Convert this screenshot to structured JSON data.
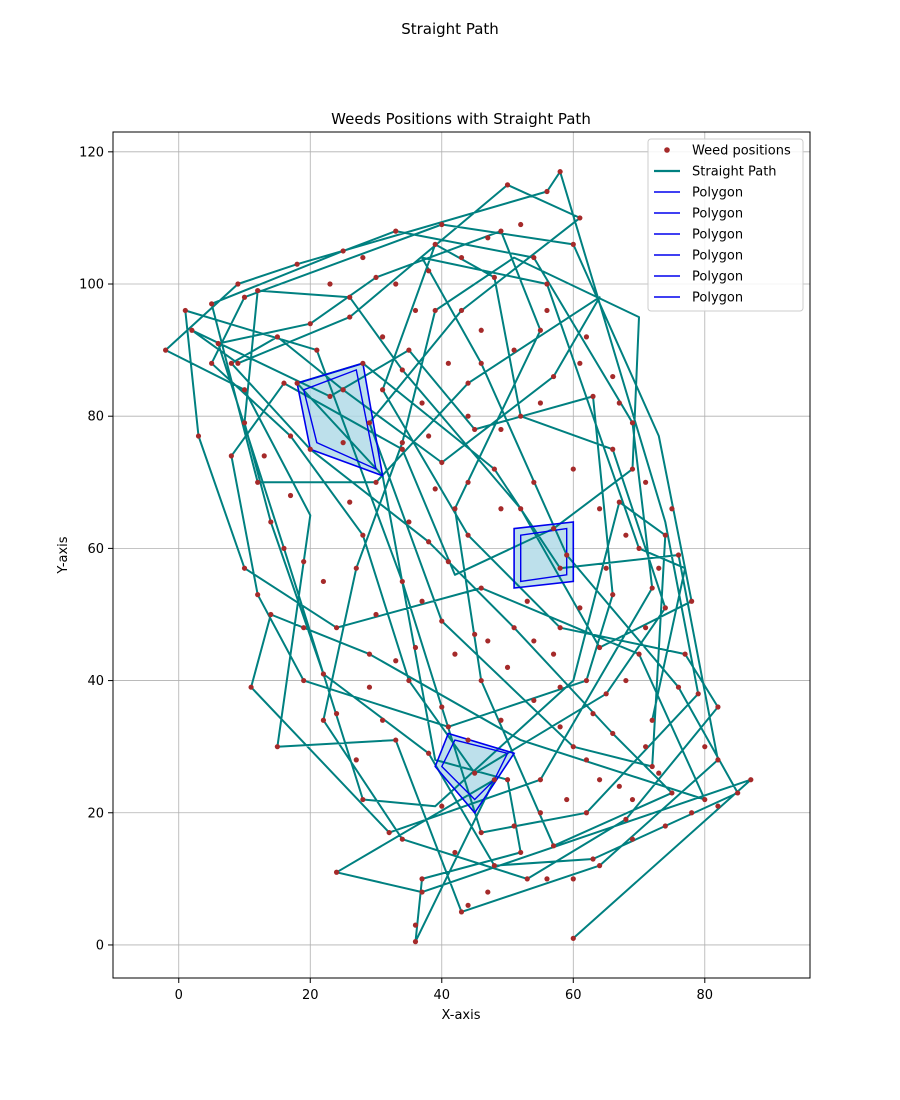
{
  "chart_data": {
    "type": "scatter",
    "suptitle": "Straight Path",
    "title": "Weeds Positions with Straight Path",
    "xlabel": "X-axis",
    "ylabel": "Y-axis",
    "xlim": [
      -10,
      96
    ],
    "ylim": [
      -5,
      123
    ],
    "xticks": [
      0,
      20,
      40,
      60,
      80
    ],
    "yticks": [
      0,
      20,
      40,
      60,
      80,
      100,
      120
    ],
    "grid": true,
    "legend_position": "top-right",
    "legend": [
      {
        "label": "Weed positions",
        "kind": "marker",
        "color": "#a52a2a"
      },
      {
        "label": "Straight Path",
        "kind": "line",
        "color": "#008080"
      },
      {
        "label": "Polygon",
        "kind": "line",
        "color": "#0000ee"
      },
      {
        "label": "Polygon",
        "kind": "line",
        "color": "#0000ee"
      },
      {
        "label": "Polygon",
        "kind": "line",
        "color": "#0000ee"
      },
      {
        "label": "Polygon",
        "kind": "line",
        "color": "#0000ee"
      },
      {
        "label": "Polygon",
        "kind": "line",
        "color": "#0000ee"
      },
      {
        "label": "Polygon",
        "kind": "line",
        "color": "#0000ee"
      }
    ],
    "colors": {
      "weed": "#a52a2a",
      "path": "#008080",
      "polygon": "#0000ee",
      "polygon_fill": "#add8e6",
      "grid": "#b0b0b0"
    },
    "path": [
      [
        60,
        1
      ],
      [
        87,
        25
      ],
      [
        37,
        8
      ],
      [
        24,
        11
      ],
      [
        48,
        25
      ],
      [
        36,
        0.5
      ],
      [
        37,
        10
      ],
      [
        52,
        14
      ],
      [
        50,
        25
      ],
      [
        39,
        28
      ],
      [
        31,
        71
      ],
      [
        18,
        85
      ],
      [
        28,
        88
      ],
      [
        48,
        72
      ],
      [
        58,
        57
      ],
      [
        76,
        59
      ],
      [
        82,
        28
      ],
      [
        64,
        12
      ],
      [
        43,
        5
      ],
      [
        33,
        31
      ],
      [
        15,
        30
      ],
      [
        20,
        65
      ],
      [
        10,
        84
      ],
      [
        -2,
        90
      ],
      [
        9,
        100
      ],
      [
        18,
        103
      ],
      [
        56,
        114
      ],
      [
        58,
        117
      ],
      [
        74,
        64
      ],
      [
        79,
        38
      ],
      [
        62,
        20
      ],
      [
        46,
        17
      ],
      [
        34,
        55
      ],
      [
        21,
        90
      ],
      [
        1,
        96
      ],
      [
        3,
        77
      ],
      [
        10,
        57
      ],
      [
        24,
        48
      ],
      [
        46,
        54
      ],
      [
        70,
        44
      ],
      [
        80,
        22
      ],
      [
        52,
        31
      ],
      [
        29,
        44
      ],
      [
        14,
        50
      ],
      [
        11,
        39
      ],
      [
        32,
        17
      ],
      [
        55,
        25
      ],
      [
        72,
        54
      ],
      [
        69,
        79
      ],
      [
        54,
        104
      ],
      [
        33,
        108
      ],
      [
        25,
        105
      ],
      [
        5,
        97
      ],
      [
        12,
        70
      ],
      [
        30,
        70
      ],
      [
        44,
        85
      ],
      [
        64,
        98
      ],
      [
        57,
        86
      ],
      [
        40,
        73
      ],
      [
        25,
        84
      ],
      [
        15,
        92
      ],
      [
        8,
        88
      ],
      [
        20,
        75
      ],
      [
        38,
        61
      ],
      [
        51,
        48
      ],
      [
        66,
        32
      ],
      [
        75,
        23
      ],
      [
        57,
        15
      ],
      [
        46,
        40
      ],
      [
        42,
        66
      ],
      [
        55,
        93
      ],
      [
        49,
        108
      ],
      [
        30,
        101
      ],
      [
        20,
        94
      ],
      [
        6,
        91
      ],
      [
        16,
        60
      ],
      [
        28,
        22
      ],
      [
        39,
        21
      ],
      [
        60,
        40
      ],
      [
        67,
        67
      ],
      [
        74,
        62
      ],
      [
        72,
        27
      ],
      [
        60,
        30
      ],
      [
        40,
        49
      ],
      [
        29,
        79
      ],
      [
        43,
        96
      ],
      [
        61,
        110
      ],
      [
        50,
        115
      ],
      [
        26,
        95
      ],
      [
        9,
        88
      ],
      [
        2,
        93
      ],
      [
        23,
        83
      ],
      [
        35,
        90
      ],
      [
        45,
        78
      ],
      [
        63,
        83
      ],
      [
        66,
        53
      ],
      [
        62,
        40
      ],
      [
        41,
        33
      ],
      [
        19,
        40
      ],
      [
        12,
        53
      ],
      [
        8,
        74
      ],
      [
        16,
        85
      ],
      [
        34,
        75
      ],
      [
        42,
        56
      ],
      [
        57,
        63
      ],
      [
        69,
        72
      ],
      [
        70,
        95
      ],
      [
        51,
        104
      ],
      [
        39,
        96
      ],
      [
        34,
        76
      ],
      [
        27,
        57
      ],
      [
        22,
        34
      ],
      [
        34,
        16
      ],
      [
        53,
        10
      ],
      [
        68,
        19
      ],
      [
        82,
        36
      ],
      [
        77,
        44
      ],
      [
        58,
        48
      ],
      [
        44,
        62
      ],
      [
        31,
        84
      ],
      [
        39,
        106
      ],
      [
        48,
        101
      ],
      [
        52,
        80
      ],
      [
        66,
        75
      ],
      [
        74,
        51
      ],
      [
        65,
        38
      ],
      [
        45,
        26
      ],
      [
        35,
        40
      ],
      [
        28,
        62
      ],
      [
        17,
        77
      ],
      [
        5,
        88
      ],
      [
        10,
        98
      ],
      [
        40,
        109
      ],
      [
        60,
        106
      ],
      [
        73,
        77
      ],
      [
        78,
        52
      ],
      [
        64,
        45
      ],
      [
        52,
        66
      ],
      [
        34,
        87
      ],
      [
        26,
        98
      ],
      [
        12,
        99
      ],
      [
        10,
        79
      ],
      [
        14,
        64
      ],
      [
        22,
        41
      ],
      [
        38,
        29
      ],
      [
        48,
        12
      ],
      [
        63,
        13
      ],
      [
        85,
        23
      ],
      [
        76,
        39
      ],
      [
        59,
        59
      ],
      [
        46,
        88
      ],
      [
        37,
        104
      ],
      [
        56,
        100
      ],
      [
        70,
        60
      ],
      [
        77,
        57
      ],
      [
        72,
        34
      ]
    ],
    "weeds": [
      [
        60,
        1
      ],
      [
        87,
        25
      ],
      [
        85,
        23
      ],
      [
        82,
        21
      ],
      [
        80,
        22
      ],
      [
        78,
        20
      ],
      [
        74,
        18
      ],
      [
        69,
        16
      ],
      [
        64,
        12
      ],
      [
        60,
        10
      ],
      [
        56,
        10
      ],
      [
        53,
        10
      ],
      [
        48,
        12
      ],
      [
        44,
        6
      ],
      [
        43,
        5
      ],
      [
        37,
        8
      ],
      [
        36,
        0.5
      ],
      [
        36,
        3
      ],
      [
        37,
        10
      ],
      [
        24,
        11
      ],
      [
        34,
        16
      ],
      [
        32,
        17
      ],
      [
        28,
        22
      ],
      [
        40,
        21
      ],
      [
        46,
        17
      ],
      [
        48,
        25
      ],
      [
        50,
        25
      ],
      [
        52,
        14
      ],
      [
        55,
        25
      ],
      [
        57,
        15
      ],
      [
        62,
        20
      ],
      [
        63,
        13
      ],
      [
        66,
        32
      ],
      [
        68,
        19
      ],
      [
        72,
        27
      ],
      [
        72,
        34
      ],
      [
        75,
        23
      ],
      [
        76,
        39
      ],
      [
        77,
        44
      ],
      [
        79,
        38
      ],
      [
        82,
        28
      ],
      [
        82,
        36
      ],
      [
        80,
        30
      ],
      [
        78,
        52
      ],
      [
        76,
        59
      ],
      [
        74,
        62
      ],
      [
        74,
        51
      ],
      [
        72,
        54
      ],
      [
        70,
        60
      ],
      [
        70,
        44
      ],
      [
        69,
        72
      ],
      [
        69,
        79
      ],
      [
        67,
        67
      ],
      [
        66,
        75
      ],
      [
        66,
        53
      ],
      [
        65,
        38
      ],
      [
        64,
        45
      ],
      [
        63,
        83
      ],
      [
        62,
        40
      ],
      [
        61,
        110
      ],
      [
        60,
        106
      ],
      [
        60,
        30
      ],
      [
        59,
        59
      ],
      [
        58,
        117
      ],
      [
        58,
        57
      ],
      [
        58,
        48
      ],
      [
        57,
        86
      ],
      [
        57,
        63
      ],
      [
        56,
        114
      ],
      [
        56,
        100
      ],
      [
        55,
        93
      ],
      [
        54,
        104
      ],
      [
        52,
        80
      ],
      [
        52,
        66
      ],
      [
        51,
        48
      ],
      [
        50,
        115
      ],
      [
        49,
        108
      ],
      [
        48,
        101
      ],
      [
        48,
        72
      ],
      [
        46,
        88
      ],
      [
        46,
        54
      ],
      [
        46,
        40
      ],
      [
        45,
        78
      ],
      [
        45,
        26
      ],
      [
        44,
        85
      ],
      [
        44,
        62
      ],
      [
        43,
        96
      ],
      [
        42,
        66
      ],
      [
        41,
        33
      ],
      [
        40,
        109
      ],
      [
        40,
        73
      ],
      [
        40,
        49
      ],
      [
        39,
        106
      ],
      [
        39,
        96
      ],
      [
        38,
        61
      ],
      [
        38,
        29
      ],
      [
        35,
        90
      ],
      [
        35,
        40
      ],
      [
        34,
        87
      ],
      [
        34,
        76
      ],
      [
        34,
        75
      ],
      [
        34,
        55
      ],
      [
        33,
        108
      ],
      [
        33,
        31
      ],
      [
        31,
        84
      ],
      [
        30,
        101
      ],
      [
        30,
        70
      ],
      [
        29,
        79
      ],
      [
        29,
        44
      ],
      [
        28,
        88
      ],
      [
        28,
        62
      ],
      [
        27,
        57
      ],
      [
        26,
        98
      ],
      [
        26,
        95
      ],
      [
        25,
        105
      ],
      [
        25,
        84
      ],
      [
        24,
        48
      ],
      [
        23,
        83
      ],
      [
        22,
        41
      ],
      [
        22,
        34
      ],
      [
        21,
        90
      ],
      [
        20,
        94
      ],
      [
        20,
        75
      ],
      [
        19,
        40
      ],
      [
        18,
        103
      ],
      [
        18,
        85
      ],
      [
        17,
        77
      ],
      [
        16,
        85
      ],
      [
        16,
        60
      ],
      [
        15,
        92
      ],
      [
        15,
        30
      ],
      [
        14,
        64
      ],
      [
        14,
        50
      ],
      [
        12,
        99
      ],
      [
        12,
        70
      ],
      [
        12,
        53
      ],
      [
        11,
        39
      ],
      [
        10,
        98
      ],
      [
        10,
        84
      ],
      [
        10,
        79
      ],
      [
        10,
        57
      ],
      [
        9,
        100
      ],
      [
        9,
        88
      ],
      [
        8,
        88
      ],
      [
        8,
        74
      ],
      [
        6,
        91
      ],
      [
        5,
        97
      ],
      [
        5,
        88
      ],
      [
        3,
        77
      ],
      [
        2,
        93
      ],
      [
        1,
        96
      ],
      [
        -2,
        90
      ],
      [
        30,
        50
      ],
      [
        36,
        45
      ],
      [
        42,
        44
      ],
      [
        47,
        46
      ],
      [
        53,
        52
      ],
      [
        57,
        44
      ],
      [
        61,
        51
      ],
      [
        65,
        57
      ],
      [
        26,
        67
      ],
      [
        22,
        55
      ],
      [
        19,
        48
      ],
      [
        24,
        35
      ],
      [
        27,
        28
      ],
      [
        31,
        34
      ],
      [
        40,
        36
      ],
      [
        44,
        31
      ],
      [
        49,
        34
      ],
      [
        54,
        37
      ],
      [
        58,
        33
      ],
      [
        62,
        28
      ],
      [
        67,
        24
      ],
      [
        71,
        30
      ],
      [
        35,
        64
      ],
      [
        39,
        69
      ],
      [
        44,
        70
      ],
      [
        49,
        66
      ],
      [
        54,
        70
      ],
      [
        60,
        72
      ],
      [
        64,
        66
      ],
      [
        68,
        62
      ],
      [
        37,
        82
      ],
      [
        41,
        88
      ],
      [
        46,
        93
      ],
      [
        51,
        90
      ],
      [
        56,
        96
      ],
      [
        62,
        92
      ],
      [
        66,
        86
      ],
      [
        23,
        100
      ],
      [
        28,
        104
      ],
      [
        33,
        100
      ],
      [
        38,
        102
      ],
      [
        43,
        104
      ],
      [
        47,
        107
      ],
      [
        52,
        109
      ],
      [
        42,
        14
      ],
      [
        47,
        8
      ],
      [
        51,
        18
      ],
      [
        55,
        20
      ],
      [
        59,
        22
      ],
      [
        64,
        25
      ],
      [
        69,
        22
      ],
      [
        73,
        26
      ],
      [
        17,
        68
      ],
      [
        13,
        74
      ],
      [
        19,
        58
      ],
      [
        25,
        76
      ],
      [
        31,
        92
      ],
      [
        36,
        96
      ],
      [
        29,
        39
      ],
      [
        33,
        43
      ],
      [
        37,
        52
      ],
      [
        41,
        58
      ],
      [
        45,
        47
      ],
      [
        50,
        42
      ],
      [
        54,
        46
      ],
      [
        58,
        39
      ],
      [
        63,
        35
      ],
      [
        68,
        40
      ],
      [
        71,
        48
      ],
      [
        73,
        57
      ],
      [
        75,
        66
      ],
      [
        71,
        70
      ],
      [
        67,
        82
      ],
      [
        61,
        88
      ],
      [
        55,
        82
      ],
      [
        49,
        78
      ],
      [
        44,
        80
      ],
      [
        38,
        77
      ]
    ],
    "polygons": [
      {
        "outer": [
          [
            18,
            85
          ],
          [
            28,
            88
          ],
          [
            31,
            71
          ],
          [
            20,
            75
          ]
        ],
        "inner": [
          [
            19,
            84
          ],
          [
            27,
            87
          ],
          [
            30,
            72
          ],
          [
            21,
            76
          ]
        ]
      },
      {
        "outer": [
          [
            51,
            63
          ],
          [
            60,
            64
          ],
          [
            60,
            55
          ],
          [
            51,
            54
          ]
        ],
        "inner": [
          [
            52,
            62
          ],
          [
            59,
            63
          ],
          [
            59,
            56
          ],
          [
            52,
            55
          ]
        ]
      },
      {
        "outer": [
          [
            39,
            27
          ],
          [
            41,
            32
          ],
          [
            51,
            29
          ],
          [
            45,
            20
          ]
        ],
        "inner": [
          [
            40,
            27
          ],
          [
            42,
            31
          ],
          [
            50,
            29
          ],
          [
            48,
            25
          ],
          [
            45,
            22
          ]
        ]
      }
    ]
  }
}
